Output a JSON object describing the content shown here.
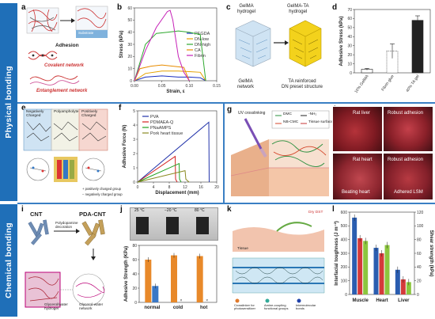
{
  "bands": {
    "physical": "Physical bonding",
    "chemical": "Chemical bonding"
  },
  "labels": {
    "a": "a",
    "b": "b",
    "c": "c",
    "d": "d",
    "e": "e",
    "f": "f",
    "g": "g",
    "h": "h",
    "i": "i",
    "j": "j",
    "k": "k",
    "l": "l"
  },
  "panel_a": {
    "adhesion": "Adhesion",
    "substrate": "Substrate",
    "covalent": "Covalent network",
    "entanglement": "Entanglement network"
  },
  "panel_c": {
    "gelma_h": "GelMA\nhydrogel",
    "gelma_ta": "GelMA-TA\nhydrogel",
    "network": "GelMA\nnetwork",
    "ta_dn": "TA reinforced\nDN preset structure"
  },
  "panel_e": {
    "neg": "Negatively\nCharged",
    "poly": "Polyampholyte",
    "pos": "Positively\nCharged",
    "key1": "+ positively charged group",
    "key2": "− negatively charged group"
  },
  "panel_g": {
    "uv": "UV crosslinking",
    "dmc": "DMC",
    "nh2": "-NH₂",
    "nbcmc": "NB-CMC",
    "tissue": "Tissue surface"
  },
  "panel_h": {
    "liver": "Rat liver",
    "robust": "Robust adhesion",
    "heart": "Rat heart",
    "robust2": "Robust adhesion",
    "beating": "Beating heart",
    "adhered": "Adhered LSM"
  },
  "panel_i": {
    "cnt": "CNT",
    "pdacnt": "PDA-CNT",
    "poly": "Polydopamine\ndecoration",
    "uv": "UV initiated\nfree radical\npolymerization",
    "gly_h": "Glycerol/water\nhydrogel",
    "gly_n": "Glycerol-water\nnetwork"
  },
  "panel_j_photo": {
    "t1": "25 °C",
    "t2": "−20 °C",
    "t3": "80 °C"
  },
  "panel_k": {
    "l1": "Crosslinker for\nphotosensitizer",
    "l2": "Amine-coupling\nfunctional groups",
    "l3": "Intermolecular\nbonds",
    "dry": "Dry DST",
    "tissue": "Tissue"
  },
  "chart_data": [
    {
      "panel": "b",
      "type": "line",
      "xlabel": "Strain, ε",
      "ylabel": "Stress (kPa)",
      "xlim": [
        0,
        0.15
      ],
      "ylim": [
        0,
        60
      ],
      "xticks": [
        "0.00",
        "0.05",
        "0.10",
        "0.15"
      ],
      "yticks": [
        "0",
        "10",
        "20",
        "30",
        "40",
        "50",
        "60"
      ],
      "legend_position": "right",
      "series": [
        {
          "name": "PEGDA",
          "color": "#1a2fbf",
          "points": [
            [
              0,
              0
            ],
            [
              0.02,
              3
            ],
            [
              0.05,
              4
            ],
            [
              0.08,
              3
            ],
            [
              0.1,
              3
            ],
            [
              0.12,
              2.5
            ],
            [
              0.13,
              0
            ]
          ]
        },
        {
          "name": "DN-low",
          "color": "#e5a100",
          "points": [
            [
              0,
              0
            ],
            [
              0.02,
              6
            ],
            [
              0.05,
              8
            ],
            [
              0.08,
              8
            ],
            [
              0.1,
              7.5
            ],
            [
              0.12,
              7
            ],
            [
              0.13,
              0
            ]
          ]
        },
        {
          "name": "DN-high",
          "color": "#2ea82e",
          "points": [
            [
              0,
              0
            ],
            [
              0.02,
              30
            ],
            [
              0.04,
              39
            ],
            [
              0.06,
              40
            ],
            [
              0.08,
              41
            ],
            [
              0.1,
              40
            ],
            [
              0.12,
              38
            ],
            [
              0.13,
              0
            ]
          ]
        },
        {
          "name": "CA",
          "color": "#e88c00",
          "points": [
            [
              0,
              0
            ],
            [
              0.01,
              10
            ],
            [
              0.03,
              12
            ],
            [
              0.05,
              13
            ],
            [
              0.07,
              12
            ],
            [
              0.09,
              11
            ],
            [
              0.1,
              0
            ]
          ]
        },
        {
          "name": "Fibrin",
          "color": "#c51fb6",
          "points": [
            [
              0,
              0
            ],
            [
              0.02,
              25
            ],
            [
              0.04,
              44
            ],
            [
              0.06,
              57
            ],
            [
              0.065,
              58
            ],
            [
              0.07,
              50
            ],
            [
              0.08,
              20
            ],
            [
              0.09,
              7
            ],
            [
              0.1,
              0
            ]
          ]
        }
      ]
    },
    {
      "panel": "d",
      "type": "bar",
      "ylabel": "Adhesive Stress (kPa)",
      "ylim": [
        0,
        70
      ],
      "yticks": [
        "0",
        "10",
        "20",
        "30",
        "40",
        "50",
        "60",
        "70"
      ],
      "categories": [
        "10% GelMA",
        "Fibrin glue",
        "40% TA gel"
      ],
      "values": [
        4,
        24,
        58
      ],
      "errors": [
        1,
        8,
        5
      ]
    },
    {
      "panel": "f",
      "type": "line",
      "xlabel": "Displacement (mm)",
      "ylabel": "Adhesive Force (N)",
      "xlim": [
        0,
        20
      ],
      "ylim": [
        0,
        5
      ],
      "xticks": [
        "0",
        "4",
        "8",
        "12",
        "16",
        "20"
      ],
      "yticks": [
        "0",
        "1",
        "2",
        "3",
        "4",
        "5"
      ],
      "legend_position": "top-left",
      "series": [
        {
          "name": "PVA",
          "color": "#2233aa",
          "points": [
            [
              0,
              0
            ],
            [
              18,
              4.2
            ],
            [
              18.1,
              0
            ]
          ]
        },
        {
          "name": "PDMAEA-Q",
          "color": "#d42222",
          "points": [
            [
              0,
              0
            ],
            [
              9.5,
              1.8
            ],
            [
              9.6,
              0.2
            ],
            [
              10,
              0
            ]
          ]
        },
        {
          "name": "PNaAMPS",
          "color": "#20a020",
          "points": [
            [
              0,
              0
            ],
            [
              10.5,
              1.3
            ],
            [
              10.6,
              0.2
            ],
            [
              11,
              0
            ]
          ]
        },
        {
          "name": "Pork heart tissue",
          "color": "#8a8a20",
          "points": [
            [
              0,
              0
            ],
            [
              12,
              0.8
            ],
            [
              12.2,
              0.2
            ],
            [
              13,
              0
            ]
          ]
        }
      ]
    },
    {
      "panel": "j",
      "type": "bar",
      "ylabel": "Adhesive Strength (KPa)",
      "ylim": [
        0,
        80
      ],
      "yticks": [
        "0",
        "20",
        "40",
        "60",
        "80"
      ],
      "categories": [
        "normal",
        "cold",
        "hot"
      ],
      "series": [
        {
          "name": "",
          "color": "#e8892a",
          "values": [
            60,
            66,
            65
          ]
        },
        {
          "name": "",
          "color": "#3a78c6",
          "values": [
            23,
            0,
            0
          ]
        }
      ]
    },
    {
      "panel": "l",
      "type": "bar",
      "ylabel": "Interfacial toughness (J m⁻²)",
      "ylabel_right": "Shear strength (kPa)",
      "ylim": [
        0,
        600
      ],
      "ylim_right": [
        0,
        120
      ],
      "yticks": [
        "0",
        "100",
        "200",
        "300",
        "400",
        "500",
        "600"
      ],
      "yticks_right": [
        "0",
        "20",
        "40",
        "60",
        "80",
        "100",
        "120"
      ],
      "categories": [
        "Muscle",
        "Heart",
        "Liver"
      ],
      "series": [
        {
          "name": "",
          "color": "#2a5db0",
          "values": [
            560,
            340,
            180
          ]
        },
        {
          "name": "",
          "color": "#d43a3a",
          "values": [
            410,
            300,
            110
          ]
        },
        {
          "name": "",
          "color": "#8cc63e",
          "values": [
            390,
            360,
            90
          ]
        }
      ]
    }
  ]
}
